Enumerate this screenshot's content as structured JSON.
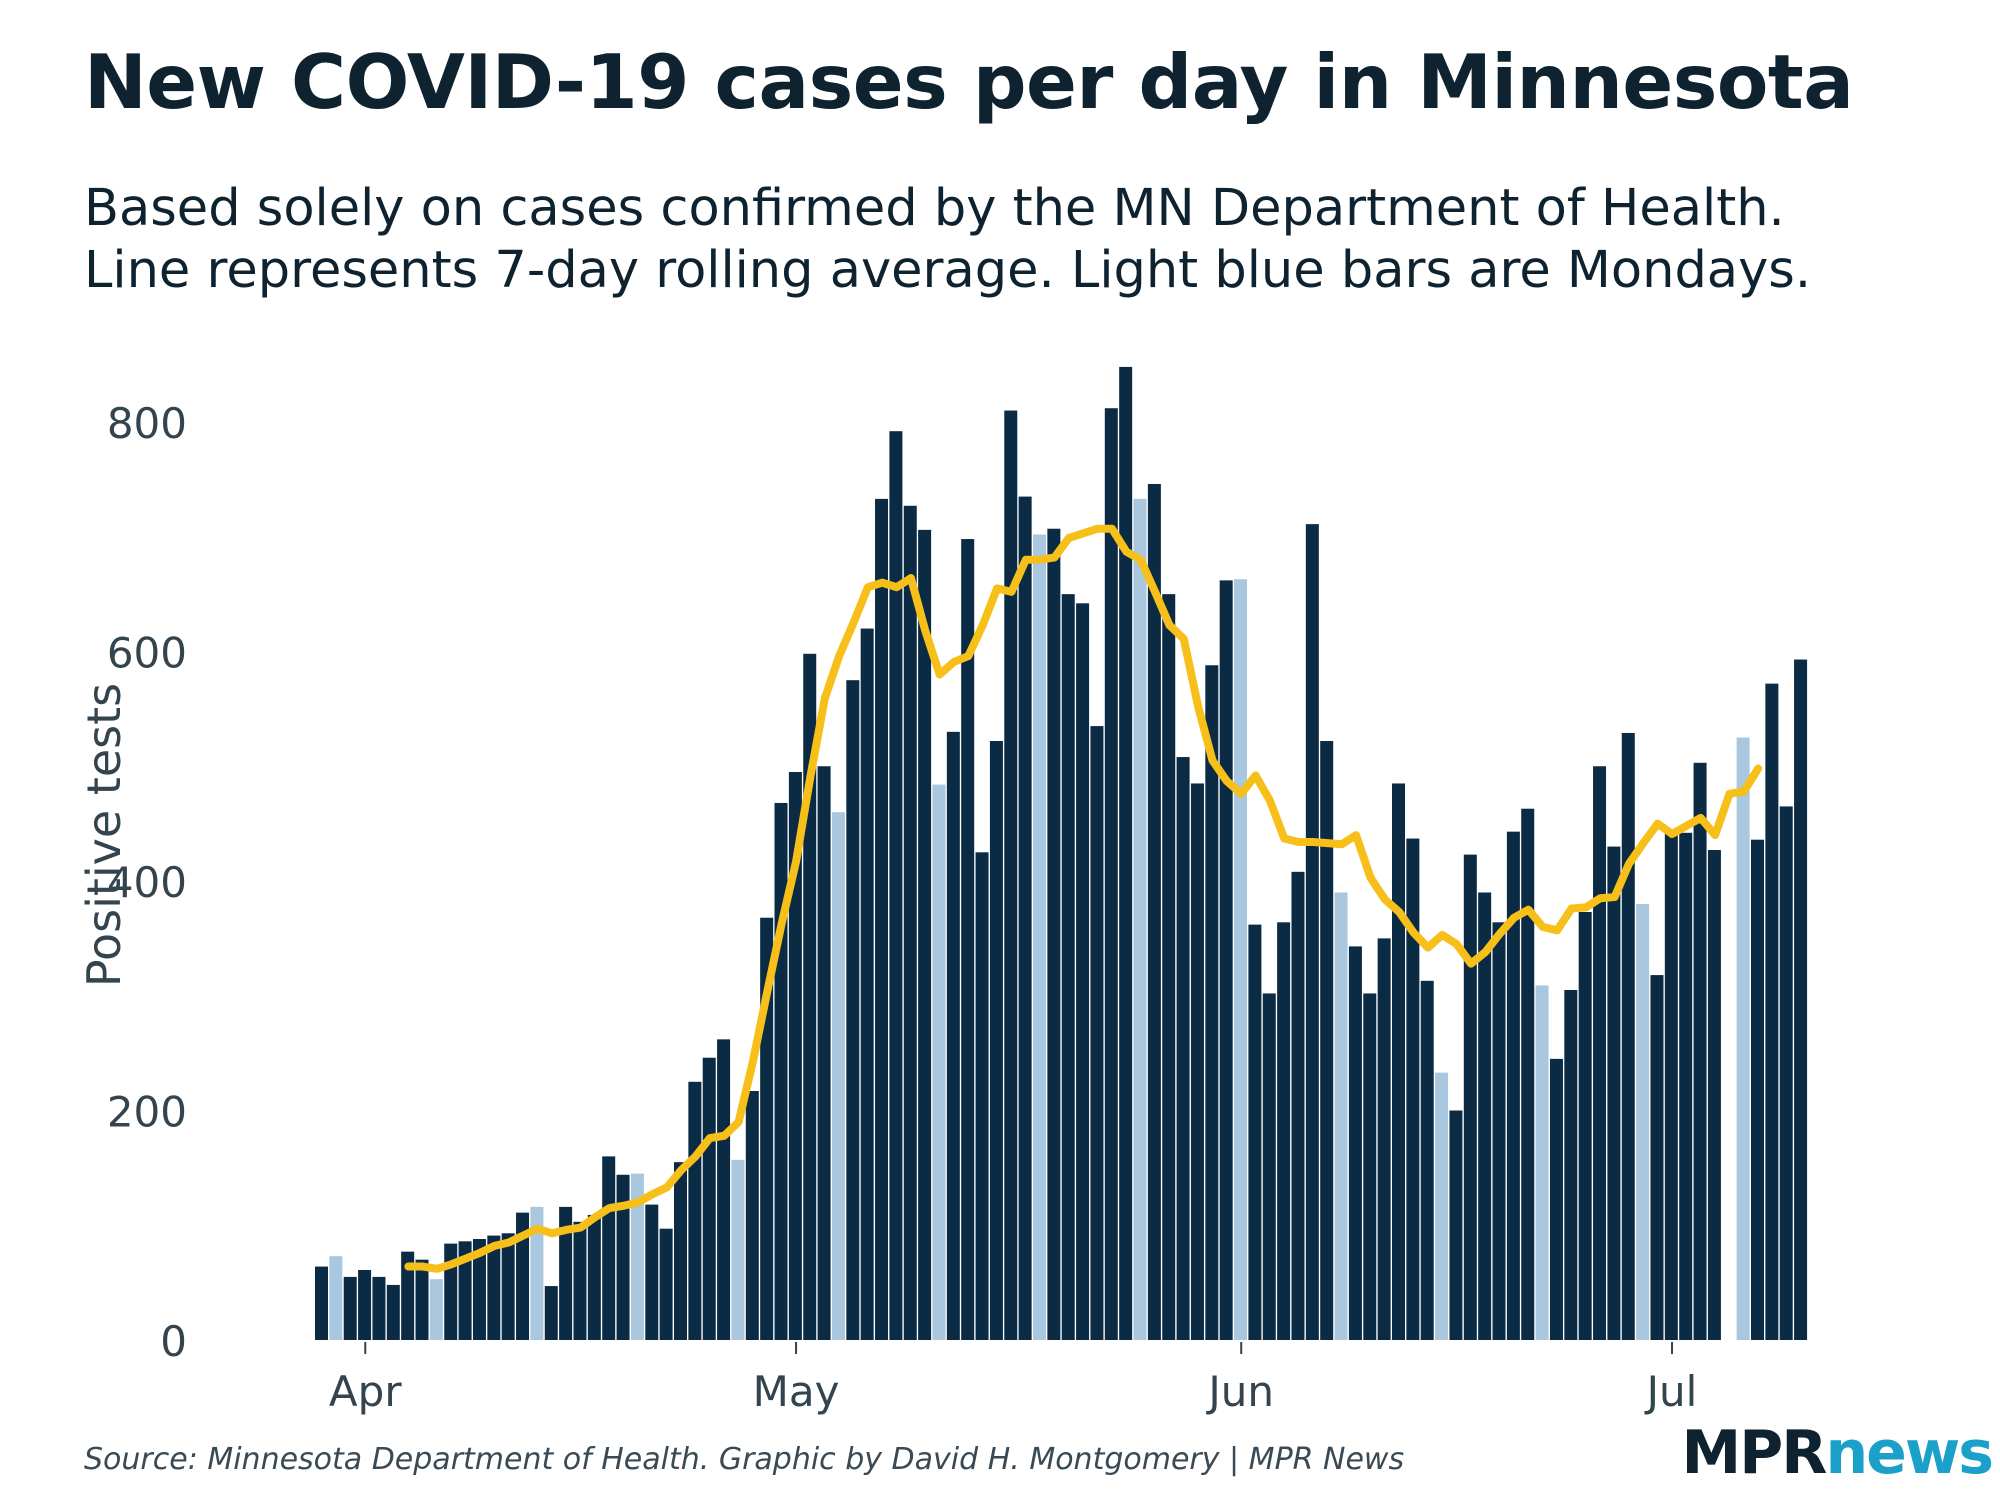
{
  "title": "New COVID-19 cases per day in Minnesota",
  "subtitle_line1": "Based solely on cases confirmed by the MN Department of Health.",
  "subtitle_line2": "Line represents 7-day rolling average. Light blue bars are Mondays.",
  "source": "Source: Minnesota Department of Health. Graphic by David H. Montgomery | MPR News",
  "logo": {
    "mpr": "MPR",
    "news": "news"
  },
  "colors": {
    "dark_bar": "#0b2a43",
    "monday_bar": "#a9c7de",
    "line": "#f6bf19",
    "text": "#0e2230",
    "axis_text": "#33444f"
  },
  "chart_data": {
    "type": "bar",
    "title": "New COVID-19 cases per day in Minnesota",
    "ylabel": "Positive tests",
    "xlabel": "",
    "ylim": [
      0,
      800
    ],
    "yticks": [
      0,
      200,
      400,
      600,
      800
    ],
    "xticks": [
      {
        "label": "Apr",
        "index": 3
      },
      {
        "label": "May",
        "index": 33
      },
      {
        "label": "Jun",
        "index": 64
      },
      {
        "label": "Jul",
        "index": 94
      }
    ],
    "start_date": "Mar 29",
    "values": [
      64,
      73,
      55,
      61,
      55,
      48,
      77,
      70,
      53,
      84,
      86,
      88,
      91,
      93,
      111,
      116,
      47,
      116,
      103,
      109,
      160,
      144,
      145,
      118,
      97,
      155,
      225,
      246,
      262,
      157,
      217,
      368,
      468,
      495,
      598,
      500,
      460,
      575,
      620,
      733,
      792,
      727,
      706,
      484,
      530,
      698,
      425,
      522,
      810,
      735,
      702,
      707,
      650,
      642,
      535,
      812,
      848,
      733,
      746,
      650,
      508,
      485,
      588,
      662,
      663,
      362,
      302,
      364,
      408,
      711,
      522,
      390,
      343,
      302,
      350,
      485,
      437,
      313,
      233,
      200,
      423,
      390,
      364,
      443,
      463,
      309,
      245,
      305,
      373,
      500,
      430,
      529,
      380,
      318,
      445,
      442,
      503,
      427,
      null,
      525,
      436,
      572,
      465,
      593
    ],
    "mondays": [
      1,
      8,
      15,
      22,
      29,
      36,
      43,
      50,
      57,
      64,
      71,
      78,
      85,
      92,
      99
    ],
    "series": [
      {
        "name": "7-day rolling average",
        "start_index": 6,
        "values": [
          64,
          64,
          62,
          66,
          71,
          76,
          82,
          85,
          91,
          97,
          93,
          96,
          98,
          107,
          115,
          117,
          120,
          127,
          133,
          148,
          160,
          176,
          178,
          190,
          243,
          304,
          363,
          417,
          491,
          559,
          596,
          625,
          656,
          660,
          656,
          664,
          618,
          580,
          591,
          596,
          623,
          655,
          652,
          680,
          680,
          682,
          699,
          703,
          707,
          707,
          687,
          680,
          652,
          623,
          611,
          552,
          505,
          487,
          476,
          492,
          470,
          437,
          434,
          434,
          433,
          432,
          440,
          403,
          384,
          373,
          355,
          342,
          353,
          345,
          328,
          338,
          354,
          368,
          375,
          360,
          357,
          376,
          377,
          385,
          386,
          415,
          433,
          450,
          441,
          448,
          455,
          440,
          476,
          478,
          498
        ]
      }
    ]
  }
}
